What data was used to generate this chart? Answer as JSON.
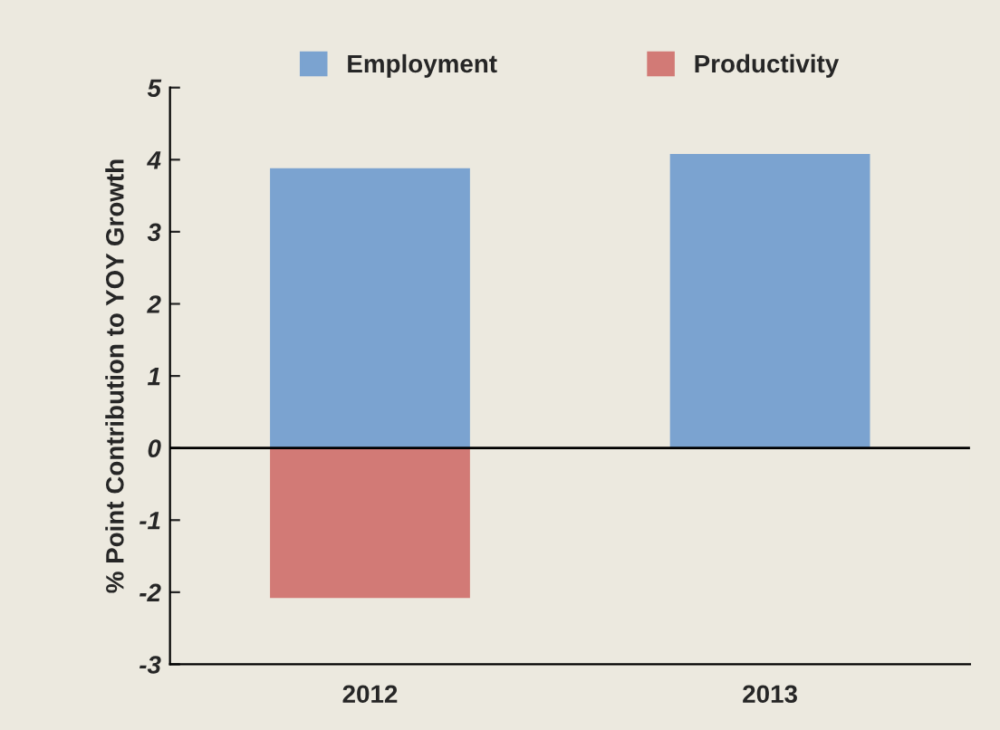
{
  "chart_data": {
    "type": "bar",
    "stacked": true,
    "ylabel": "% Point Contribution to YOY Growth",
    "categories": [
      "2012",
      "2013"
    ],
    "series": [
      {
        "name": "Employment",
        "color": "#7ba3d0",
        "values": [
          3.88,
          4.08
        ]
      },
      {
        "name": "Productivity",
        "color": "#d27a76",
        "values": [
          -2.08,
          null
        ]
      }
    ],
    "ylim": [
      -3,
      5
    ],
    "yticks": [
      -3,
      -2,
      -1,
      0,
      1,
      2,
      3,
      4,
      5
    ],
    "ref_lines": [
      {
        "axis": "y",
        "value": 0
      }
    ],
    "grid": false,
    "legend": "top"
  }
}
